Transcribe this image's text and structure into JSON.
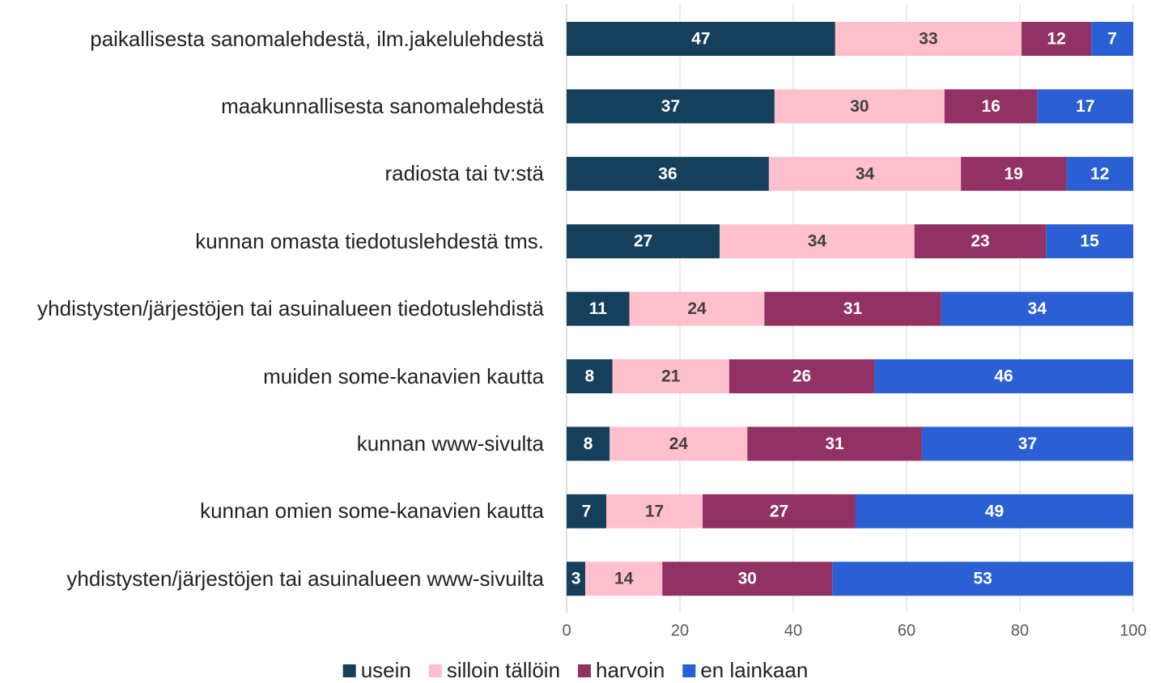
{
  "chart_data": {
    "type": "stacked_barh",
    "categories": [
      "paikallisesta sanomalehdestä, ilm.jakelulehdestä",
      "maakunnallisesta sanomalehdestä",
      "radiosta tai tv:stä",
      "kunnan omasta tiedotuslehdestä tms.",
      "yhdistysten/järjestöjen tai asuinalueen tiedotuslehdistä",
      "muiden some-kanavien kautta",
      "kunnan www-sivulta",
      "kunnan omien some-kanavien kautta",
      "yhdistysten/järjestöjen tai asuinalueen www-sivuilta"
    ],
    "series": [
      {
        "name": "usein",
        "color": "#163f5c",
        "label_color": "#ffffff",
        "values": [
          47.4,
          36.7,
          35.7,
          27.0,
          11.1,
          8.1,
          7.6,
          7.0,
          3.3
        ],
        "value_labels": [
          "47",
          "37",
          "36",
          "27",
          "11",
          "8",
          "8",
          "7",
          "3"
        ]
      },
      {
        "name": "silloin tällöin",
        "color": "#ffc0cd",
        "label_color": "#404040",
        "values": [
          32.9,
          30.0,
          33.9,
          34.4,
          23.8,
          20.6,
          24.3,
          17.0,
          13.6
        ],
        "value_labels": [
          "33",
          "30",
          "34",
          "34",
          "24",
          "21",
          "24",
          "17",
          "14"
        ]
      },
      {
        "name": "harvoin",
        "color": "#923163",
        "label_color": "#ffffff",
        "values": [
          12.3,
          16.4,
          18.6,
          23.2,
          31.2,
          25.6,
          30.8,
          27.0,
          30.0
        ],
        "value_labels": [
          "12",
          "16",
          "19",
          "23",
          "31",
          "26",
          "31",
          "27",
          "30"
        ]
      },
      {
        "name": "en lainkaan",
        "color": "#2b5fd4",
        "label_color": "#ffffff",
        "values": [
          7.4,
          16.9,
          11.8,
          15.4,
          33.9,
          45.7,
          37.3,
          49.0,
          53.1
        ],
        "value_labels": [
          "7",
          "17",
          "12",
          "15",
          "34",
          "46",
          "37",
          "49",
          "53"
        ]
      }
    ],
    "xlim": [
      0,
      100
    ],
    "xticks": [
      0,
      20,
      40,
      60,
      80,
      100
    ],
    "grid": true,
    "legend": "bottom"
  }
}
